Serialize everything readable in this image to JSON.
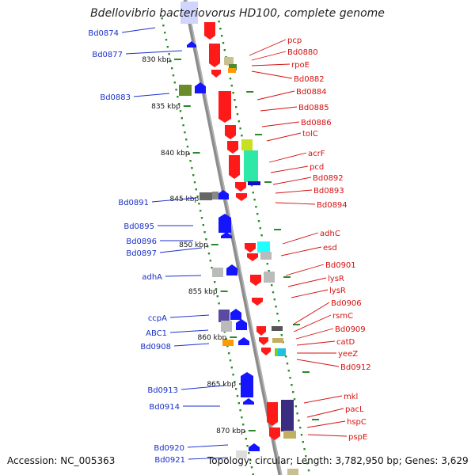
{
  "title": "Bdellovibrio bacteriovorus HD100, complete genome",
  "footer": {
    "accession": "Accession: NC_005363",
    "topology": "Topology: circular; Length: 3,782,950 bp; Genes: 3,629"
  },
  "colors": {
    "forward_gene": "#1414ff",
    "reverse_gene": "#ff1a1a",
    "forward_label": "#1a2fcc",
    "reverse_label": "#d51010",
    "backbone": "#8c8c8c",
    "tick": "#2a8a2a"
  },
  "scale": {
    "ticks": [
      {
        "label": "830 kbp"
      },
      {
        "label": "835 kbp"
      },
      {
        "label": "840 kbp"
      },
      {
        "label": "845 kbp"
      },
      {
        "label": "850 kbp"
      },
      {
        "label": "855 kbp"
      },
      {
        "label": "860 kbp"
      },
      {
        "label": "865 kbp"
      },
      {
        "label": "870 kbp"
      }
    ]
  },
  "left_labels": [
    "Bd0874",
    "Bd0877",
    "Bd0883",
    "Bd0891",
    "Bd0895",
    "Bd0896",
    "Bd0897",
    "adhA",
    "ccpA",
    "ABC1",
    "Bd0908",
    "Bd0913",
    "Bd0914",
    "Bd0920",
    "Bd0921"
  ],
  "right_labels": [
    "pcp",
    "Bd0880",
    "rpoE",
    "Bd0882",
    "Bd0884",
    "Bd0885",
    "Bd0886",
    "tolC",
    "acrF",
    "pcd",
    "Bd0892",
    "Bd0893",
    "Bd0894",
    "adhC",
    "esd",
    "Bd0901",
    "lysR",
    "lysR",
    "Bd0906",
    "rsmC",
    "Bd0909",
    "catD",
    "yeeZ",
    "Bd0912",
    "mkl",
    "pacL",
    "hspC",
    "pspE"
  ]
}
